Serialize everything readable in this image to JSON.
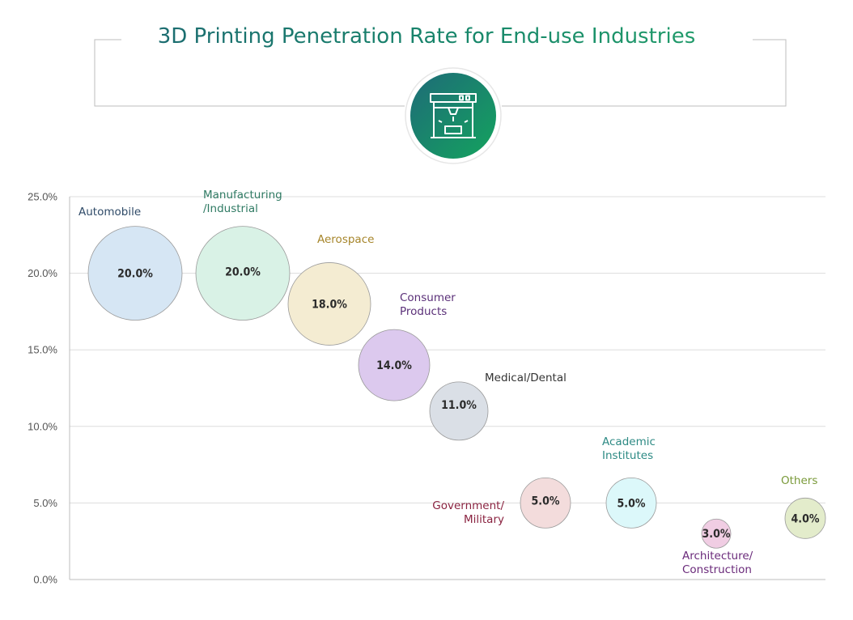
{
  "chart_data": {
    "type": "scatter",
    "title": "3D Printing Penetration Rate for End-use Industries",
    "icon": "3d-printer-icon",
    "y_ticks": [
      "0.0%",
      "5.0%",
      "10.0%",
      "15.0%",
      "20.0%",
      "25.0%"
    ],
    "ylim": [
      0,
      25
    ],
    "grid": true,
    "points": [
      {
        "name": "Automobile",
        "value": 20.0,
        "label": "20.0%",
        "fill": "#d6e6f4",
        "text_color": "#2f4b68"
      },
      {
        "name": "Manufacturing /Industrial",
        "value": 20.0,
        "label": "20.0%",
        "fill": "#d9f2e6",
        "text_color": "#2f7a63"
      },
      {
        "name": "Aerospace",
        "value": 18.0,
        "label": "18.0%",
        "fill": "#f4ecd2",
        "text_color": "#a6852a"
      },
      {
        "name": "Consumer Products",
        "value": 14.0,
        "label": "14.0%",
        "fill": "#dcc9ee",
        "text_color": "#5a2f78"
      },
      {
        "name": "Medical/Dental",
        "value": 11.0,
        "label": "11.0%",
        "fill": "#dadfe6",
        "text_color": "#333333"
      },
      {
        "name": "Government/ Military",
        "value": 5.0,
        "label": "5.0%",
        "fill": "#f3dcdc",
        "text_color": "#8a2340"
      },
      {
        "name": "Academic Institutes",
        "value": 5.0,
        "label": "5.0%",
        "fill": "#dcf8fa",
        "text_color": "#2d8a84"
      },
      {
        "name": "Architecture/ Construction",
        "value": 3.0,
        "label": "3.0%",
        "fill": "#f0cde3",
        "text_color": "#6a2a7a"
      },
      {
        "name": "Others",
        "value": 4.0,
        "label": "4.0%",
        "fill": "#e3eccb",
        "text_color": "#7a9a3a"
      }
    ]
  }
}
